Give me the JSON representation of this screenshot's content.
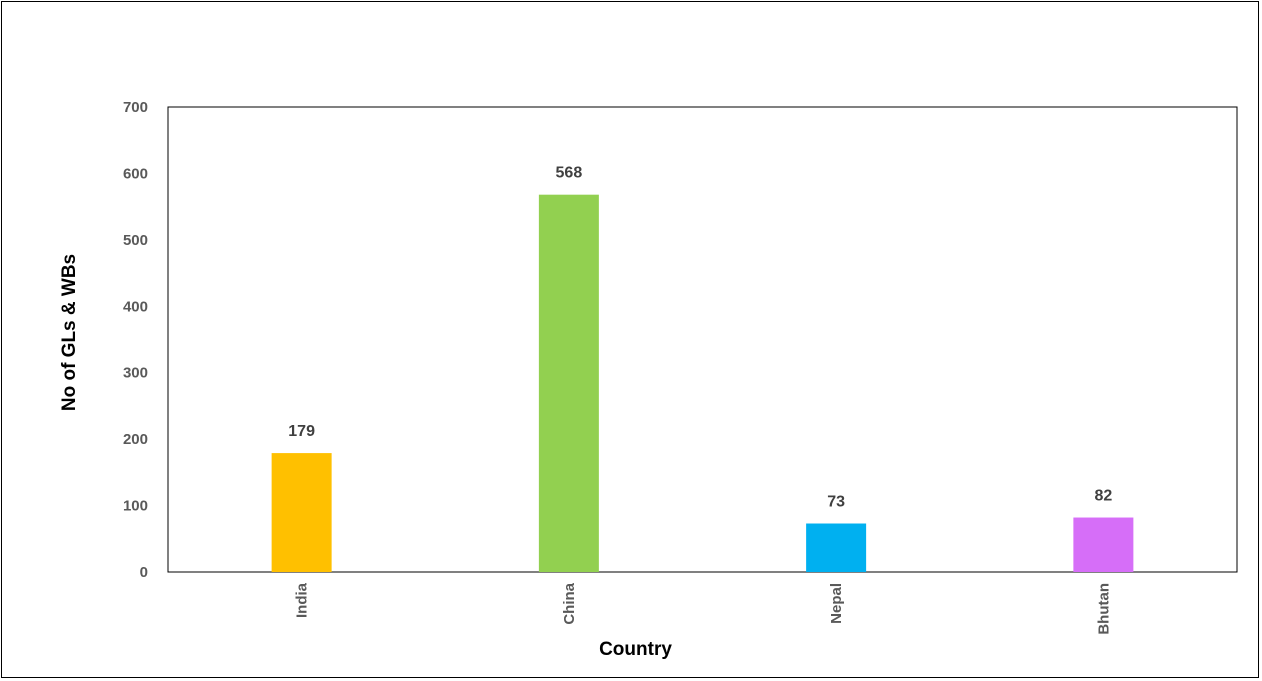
{
  "chart_data": {
    "type": "bar",
    "title": "",
    "xlabel": "Country",
    "ylabel": "No of GLs & WBs",
    "categories": [
      "India",
      "China",
      "Nepal",
      "Bhutan"
    ],
    "values": [
      179,
      568,
      73,
      82
    ],
    "colors": [
      "#FFC000",
      "#92D050",
      "#00B0F0",
      "#D66EF8"
    ],
    "ylim": [
      0,
      700
    ],
    "yticks": [
      0,
      100,
      200,
      300,
      400,
      500,
      600,
      700
    ],
    "data_labels": [
      "179",
      "568",
      "73",
      "82"
    ],
    "grid": false,
    "legend": "none"
  }
}
